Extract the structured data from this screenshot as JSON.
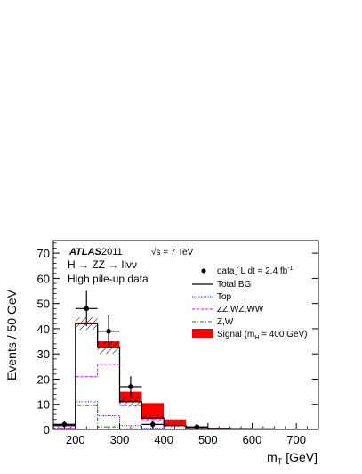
{
  "chart_data": {
    "type": "bar",
    "x_edges": [
      150,
      200,
      250,
      300,
      350,
      400,
      450,
      500,
      550,
      600,
      650,
      700,
      750
    ],
    "xlim": [
      150,
      750
    ],
    "ylim": [
      0,
      75
    ],
    "x_ticks": [
      200,
      300,
      400,
      500,
      600,
      700
    ],
    "y_ticks": [
      0,
      10,
      20,
      30,
      40,
      50,
      60,
      70
    ],
    "xlabel": "m",
    "xlabel_sub": "T",
    "xlabel_unit": " [GeV]",
    "ylabel": "Events / 50 GeV",
    "annotations": {
      "atlas": "ATLAS",
      "year": "2011",
      "sqrt_s": "√s = 7 TeV",
      "process": "H → ZZ → llνν",
      "dataset": "High pile-up data",
      "lumi": "∫ L dt = 2.4 fb",
      "lumi_exp": "-1"
    },
    "legend": {
      "data": "data",
      "total": "Total BG",
      "top": "Top",
      "diboson": "ZZ,WZ,WW",
      "zw": "Z,W",
      "signal": "Signal (m",
      "signal_sub": "H",
      "signal_tail": " = 400 GeV)"
    },
    "series": [
      {
        "name": "Total BG",
        "key": "total",
        "values": [
          1.5,
          42,
          32.5,
          11,
          4.5,
          1.5,
          0.7,
          0.4,
          0.3,
          0.2,
          0.1,
          0.1
        ]
      },
      {
        "name": "Top",
        "key": "top",
        "values": [
          0.3,
          11,
          5.5,
          1.5,
          0.5,
          0.2,
          0.1,
          0.1,
          0.0,
          0.0,
          0.0,
          0.0
        ]
      },
      {
        "name": "ZZ,WZ,WW",
        "key": "diboson",
        "values": [
          0.5,
          21,
          26,
          9.5,
          4,
          1.5,
          0.7,
          0.4,
          0.3,
          0.2,
          0.1,
          0.1
        ]
      },
      {
        "name": "Z,W",
        "key": "zw",
        "values": [
          0.5,
          9.5,
          1.0,
          0.2,
          0.1,
          0.0,
          0.0,
          0.0,
          0.0,
          0.0,
          0.0,
          0.0
        ]
      },
      {
        "name": "Signal (m_H = 400 GeV)",
        "key": "signal",
        "values": [
          0.0,
          0.5,
          2.5,
          4,
          6,
          2.5,
          0.5,
          0.2,
          0.1,
          0.0,
          0.0,
          0.0
        ]
      }
    ],
    "bg_uncertainty": [
      0.8,
      2.5,
      2.5,
      2.0,
      1.5,
      0.6,
      0.3,
      0.2,
      0.1,
      0.1,
      0.05,
      0.05
    ],
    "data_points": [
      {
        "x": 175,
        "y": 2,
        "err": 1.4
      },
      {
        "x": 225,
        "y": 48,
        "err": 7
      },
      {
        "x": 275,
        "y": 39,
        "err": 6.3
      },
      {
        "x": 325,
        "y": 17,
        "err": 4.1
      },
      {
        "x": 375,
        "y": 2,
        "err": 1.4
      },
      {
        "x": 475,
        "y": 1,
        "err": 1.0
      }
    ],
    "colors": {
      "total": "#000000",
      "top": "#0000ff",
      "diboson": "#ff00ff",
      "zw": "#008000",
      "signal": "#ff0000",
      "data": "#000000"
    }
  }
}
